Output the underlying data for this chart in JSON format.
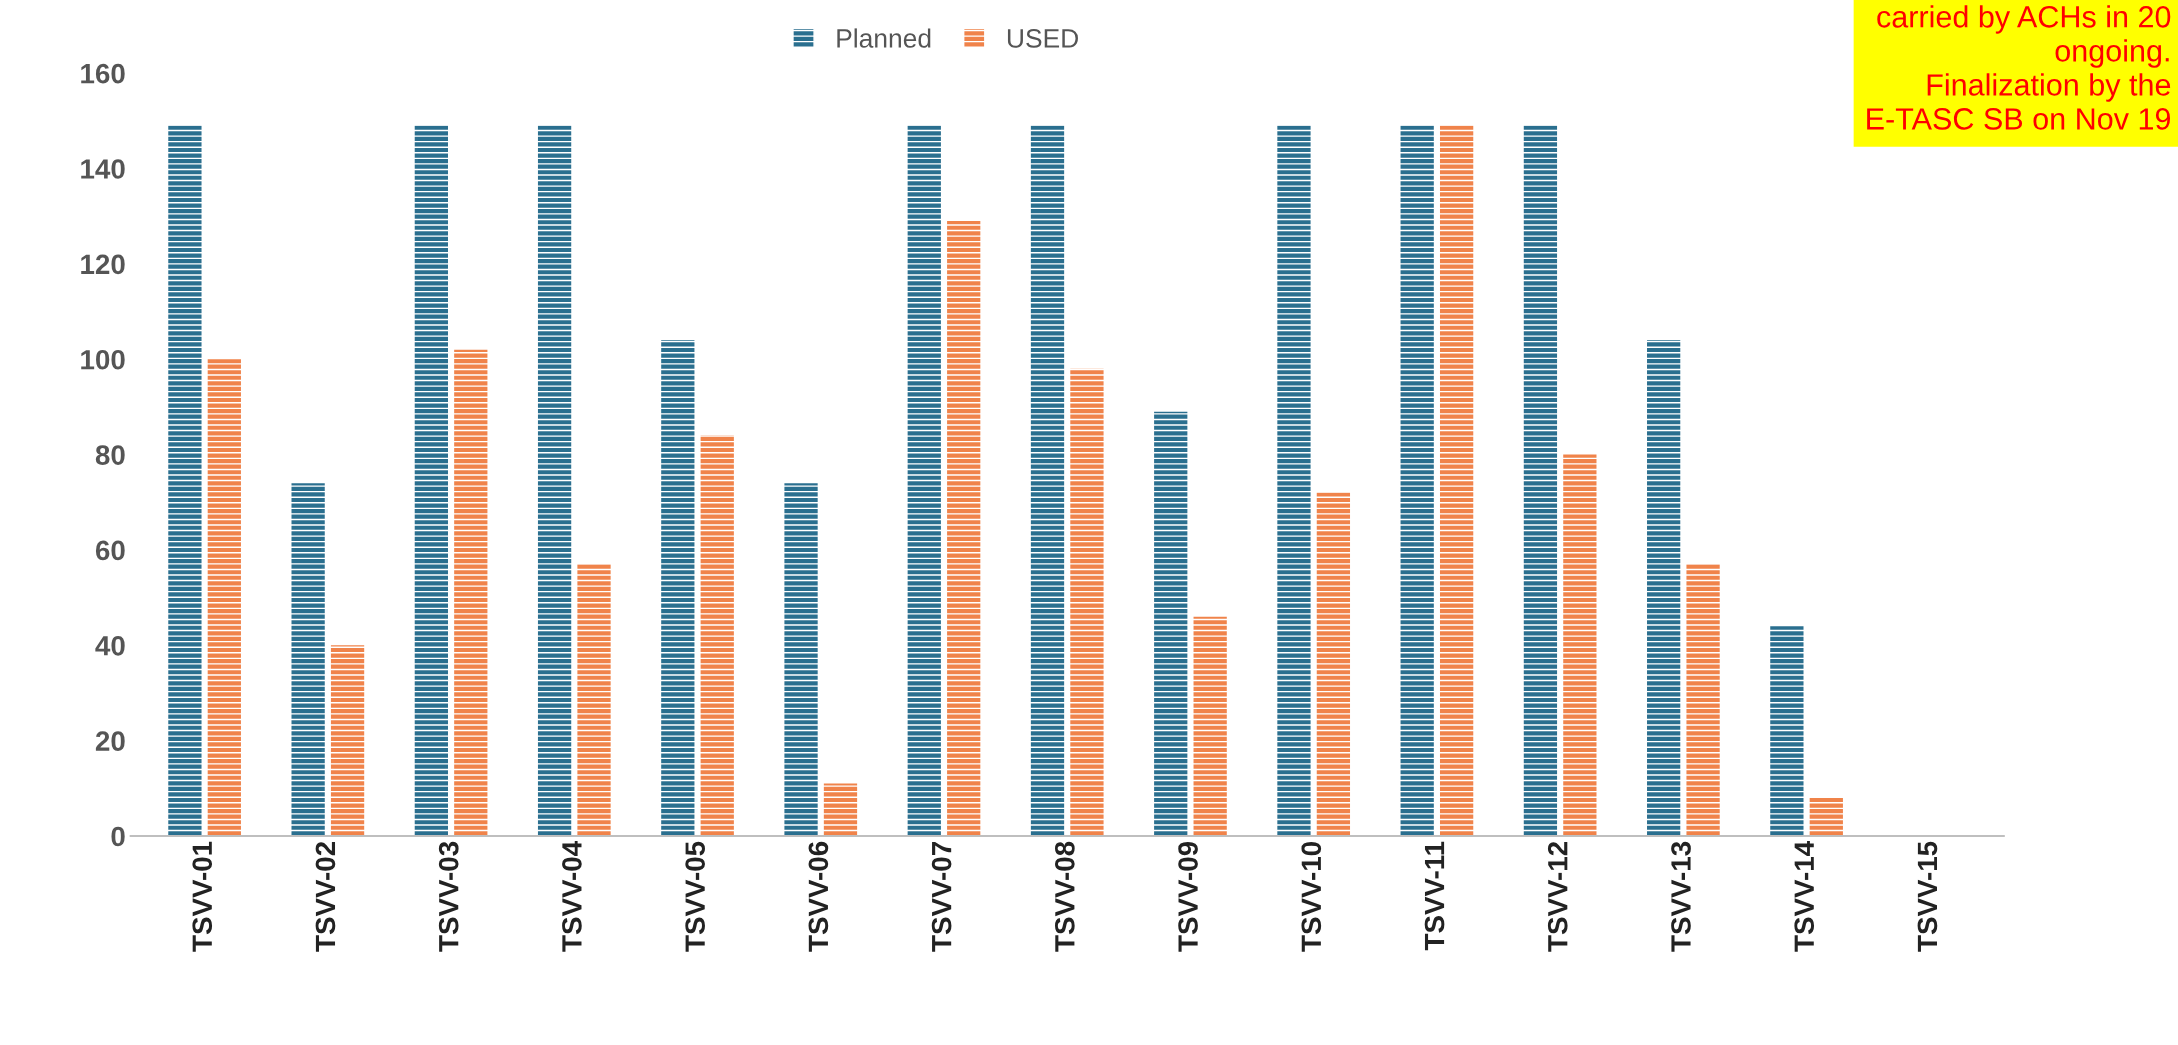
{
  "chart_data": {
    "type": "bar",
    "categories": [
      "TSVV-01",
      "TSVV-02",
      "TSVV-03",
      "TSVV-04",
      "TSVV-05",
      "TSVV-06",
      "TSVV-07",
      "TSVV-08",
      "TSVV-09",
      "TSVV-10",
      "TSVV-11",
      "TSVV-12",
      "TSVV-13",
      "TSVV-14",
      "TSVV-15"
    ],
    "series": [
      {
        "name": "Planned",
        "color": "#2a6f8f",
        "values": [
          149,
          74,
          149,
          149,
          104,
          74,
          149,
          149,
          89,
          149,
          149,
          149,
          104,
          44,
          null
        ]
      },
      {
        "name": "USED",
        "color": "#f0834a",
        "values": [
          100,
          40,
          102,
          57,
          84,
          11,
          129,
          98,
          46,
          72,
          149,
          80,
          57,
          8,
          null
        ]
      }
    ],
    "ylim": [
      0,
      160
    ],
    "yticks": [
      0,
      20,
      40,
      60,
      80,
      100,
      120,
      140,
      160
    ],
    "grid": false,
    "legend": "top",
    "annotations": [
      "carried by ACHs in 20\nongoing.\nFinalization by the\nE-TASC SB on Nov 19"
    ]
  }
}
